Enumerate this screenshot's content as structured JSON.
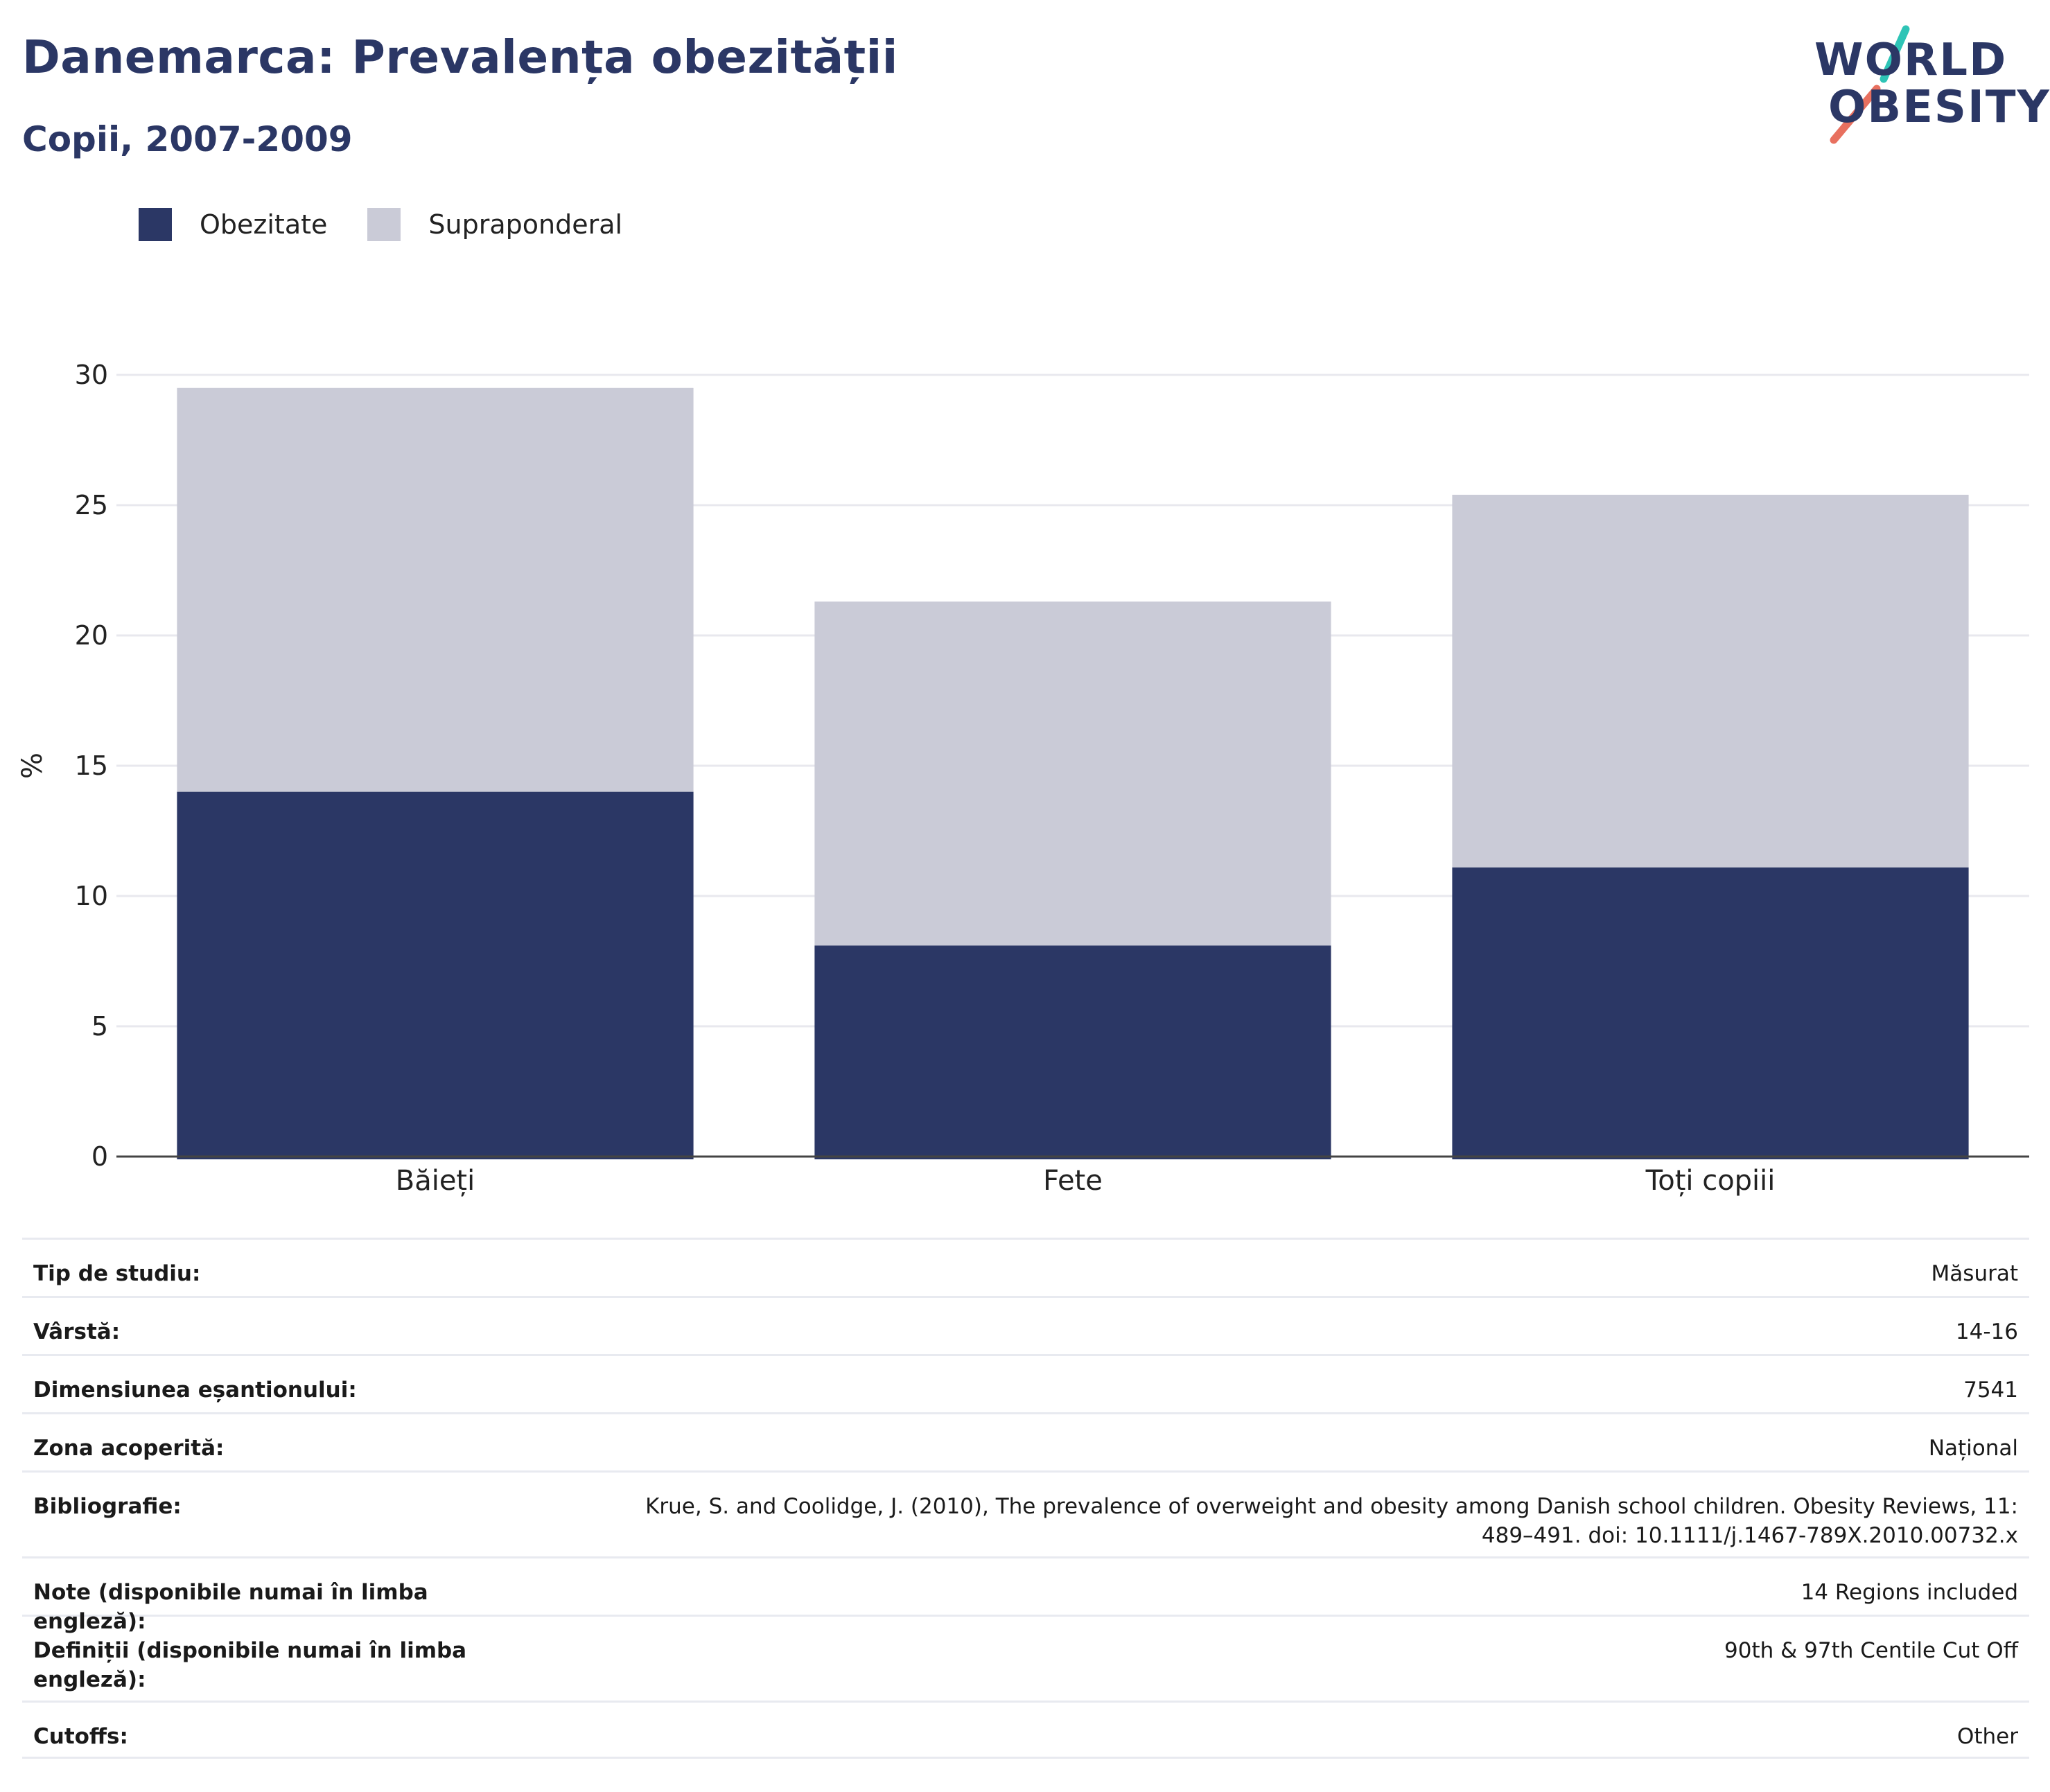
{
  "header": {
    "title": "Danemarca: Prevalența obezității",
    "subtitle": "Copii, 2007-2009"
  },
  "logo": {
    "line1": "WORLD",
    "line2": "OBESITY",
    "accent_teal": "#2ec4b6",
    "accent_coral": "#e8705f"
  },
  "colors": {
    "obesity": "#2b3765",
    "overweight": "#cacbd7",
    "grid": "#e8e8ee",
    "axis": "#444444"
  },
  "chart_data": {
    "type": "bar",
    "stacked": true,
    "categories": [
      "Băieți",
      "Fete",
      "Toți copiii"
    ],
    "series": [
      {
        "name": "Obezitate",
        "values": [
          14,
          8.1,
          11.1
        ]
      },
      {
        "name": "Supraponderal",
        "values": [
          15.5,
          13.2,
          14.3
        ]
      }
    ],
    "ylabel": "%",
    "ylim": [
      0,
      30
    ],
    "yticks": [
      0,
      5,
      10,
      15,
      20,
      25,
      30
    ],
    "grid": true,
    "legend": "top-left"
  },
  "info": [
    {
      "label": "Tip de studiu:",
      "value": "Măsurat"
    },
    {
      "label": "Vârstă:",
      "value": "14-16"
    },
    {
      "label": "Dimensiunea eșantionului:",
      "value": "7541"
    },
    {
      "label": "Zona acoperită:",
      "value": "Național"
    },
    {
      "label": "Bibliografie:",
      "value": "Krue, S. and Coolidge, J. (2010), The prevalence of overweight and obesity among Danish school children. Obesity Reviews, 11: 489–491. doi: 10.1111/j.1467-789X.2010.00732.x"
    },
    {
      "label": "Note (disponibile numai în limba engleză):",
      "value": "14 Regions included"
    },
    {
      "label": "Definiții (disponibile numai în limba engleză):",
      "value": "90th & 97th Centile Cut Off"
    },
    {
      "label": "Cutoffs:",
      "value": "Other"
    }
  ]
}
